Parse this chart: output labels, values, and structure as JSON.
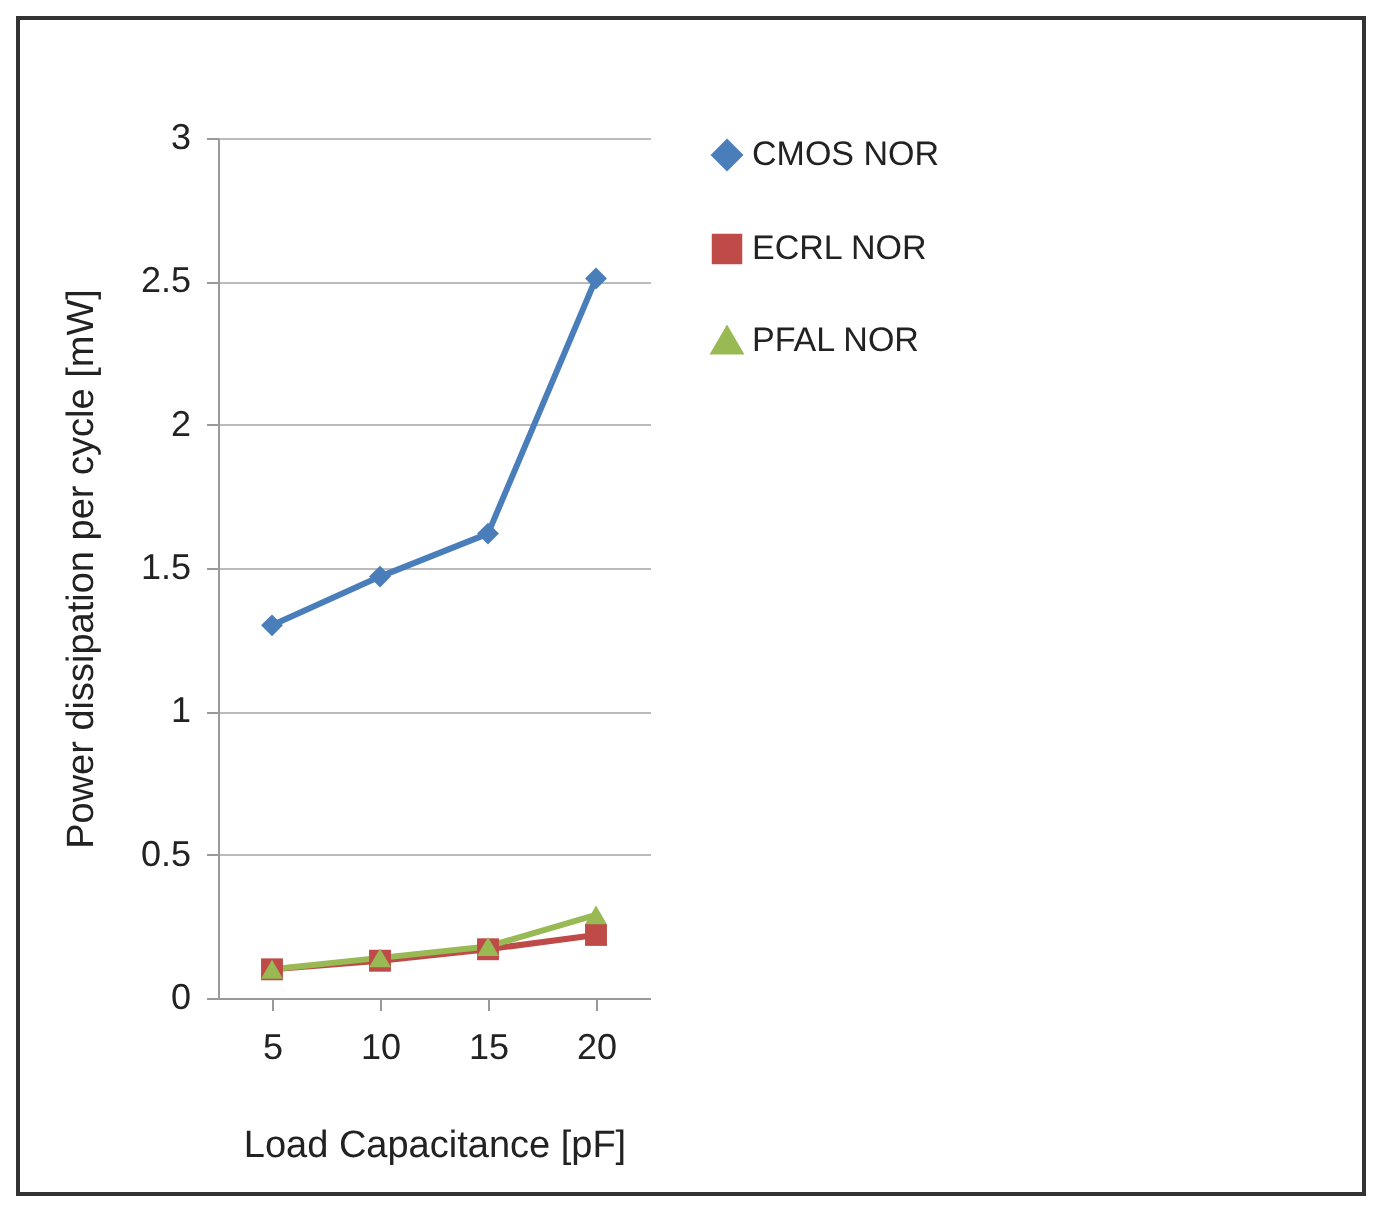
{
  "chart_data": {
    "type": "line",
    "xlabel": "Load Capacitance [pF]",
    "ylabel": "Power dissipation per cycle [mW]",
    "categories": [
      "5",
      "10",
      "15",
      "20"
    ],
    "series": [
      {
        "name": "CMOS NOR",
        "color": "#4a7ebb",
        "marker": "diamond",
        "values": [
          1.3,
          1.47,
          1.62,
          2.51
        ]
      },
      {
        "name": "ECRL NOR",
        "color": "#be4b48",
        "marker": "square",
        "values": [
          0.1,
          0.13,
          0.17,
          0.22
        ]
      },
      {
        "name": "PFAL NOR",
        "color": "#98b954",
        "marker": "triangle",
        "values": [
          0.1,
          0.14,
          0.18,
          0.29
        ]
      }
    ],
    "ylim": [
      0,
      3
    ],
    "yticks": [
      0,
      0.5,
      1,
      1.5,
      2,
      2.5,
      3
    ],
    "grid": "y",
    "legend": "right",
    "line_style": "solid"
  }
}
